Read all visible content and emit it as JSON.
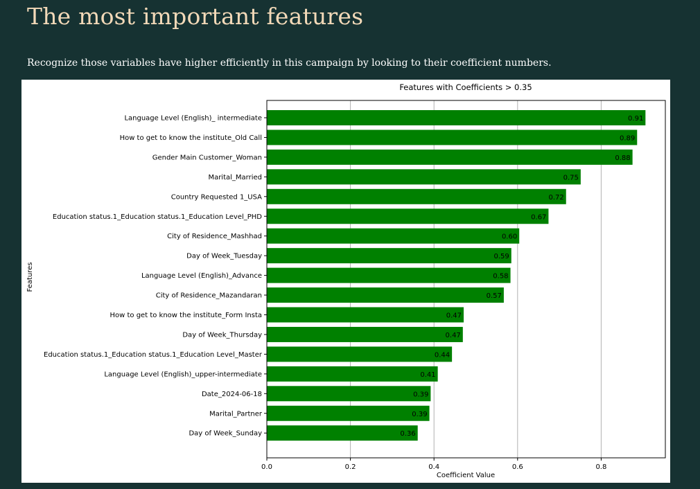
{
  "page": {
    "title": "The most important features",
    "subtitle": "Recognize those variables have higher efficiently in this campaign by looking to their coefficient numbers."
  },
  "colors": {
    "background": "#163232",
    "title": "#f2d9b8",
    "bar": "#008000"
  },
  "chart_data": {
    "type": "bar",
    "orientation": "horizontal",
    "title": "Features with Coefficients > 0.35",
    "xlabel": "Coefficient Value",
    "ylabel": "Features",
    "xlim": [
      0,
      0.95
    ],
    "xticks": [
      "0.0",
      "0.2",
      "0.4",
      "0.6",
      "0.8"
    ],
    "grid": "vertical",
    "categories": [
      "Language Level (English)_ intermediate",
      "How to get to know the institute_Old Call",
      "Gender Main Customer_Woman",
      "Marital_Married",
      "Country Requested 1_USA",
      "Education status.1_Education status.1_Education Level_PHD",
      "City of Residence_Mashhad",
      "Day of Week_Tuesday",
      "Language Level (English)_Advance",
      "City of Residence_Mazandaran",
      "How to get to know the institute_Form Insta",
      "Day of Week_Thursday",
      "Education status.1_Education status.1_Education Level_Master",
      "Language Level (English)_upper-intermediate",
      "Date_2024-06-18",
      "Marital_Partner",
      "Day of Week_Sunday"
    ],
    "values": [
      0.906,
      0.886,
      0.875,
      0.751,
      0.716,
      0.674,
      0.604,
      0.585,
      0.583,
      0.567,
      0.471,
      0.469,
      0.443,
      0.409,
      0.392,
      0.389,
      0.361
    ],
    "labels": [
      "0.91",
      "0.89",
      "0.88",
      "0.75",
      "0.72",
      "0.67",
      "0.60",
      "0.59",
      "0.58",
      "0.57",
      "0.47",
      "0.47",
      "0.44",
      "0.41",
      "0.39",
      "0.39",
      "0.36"
    ]
  }
}
